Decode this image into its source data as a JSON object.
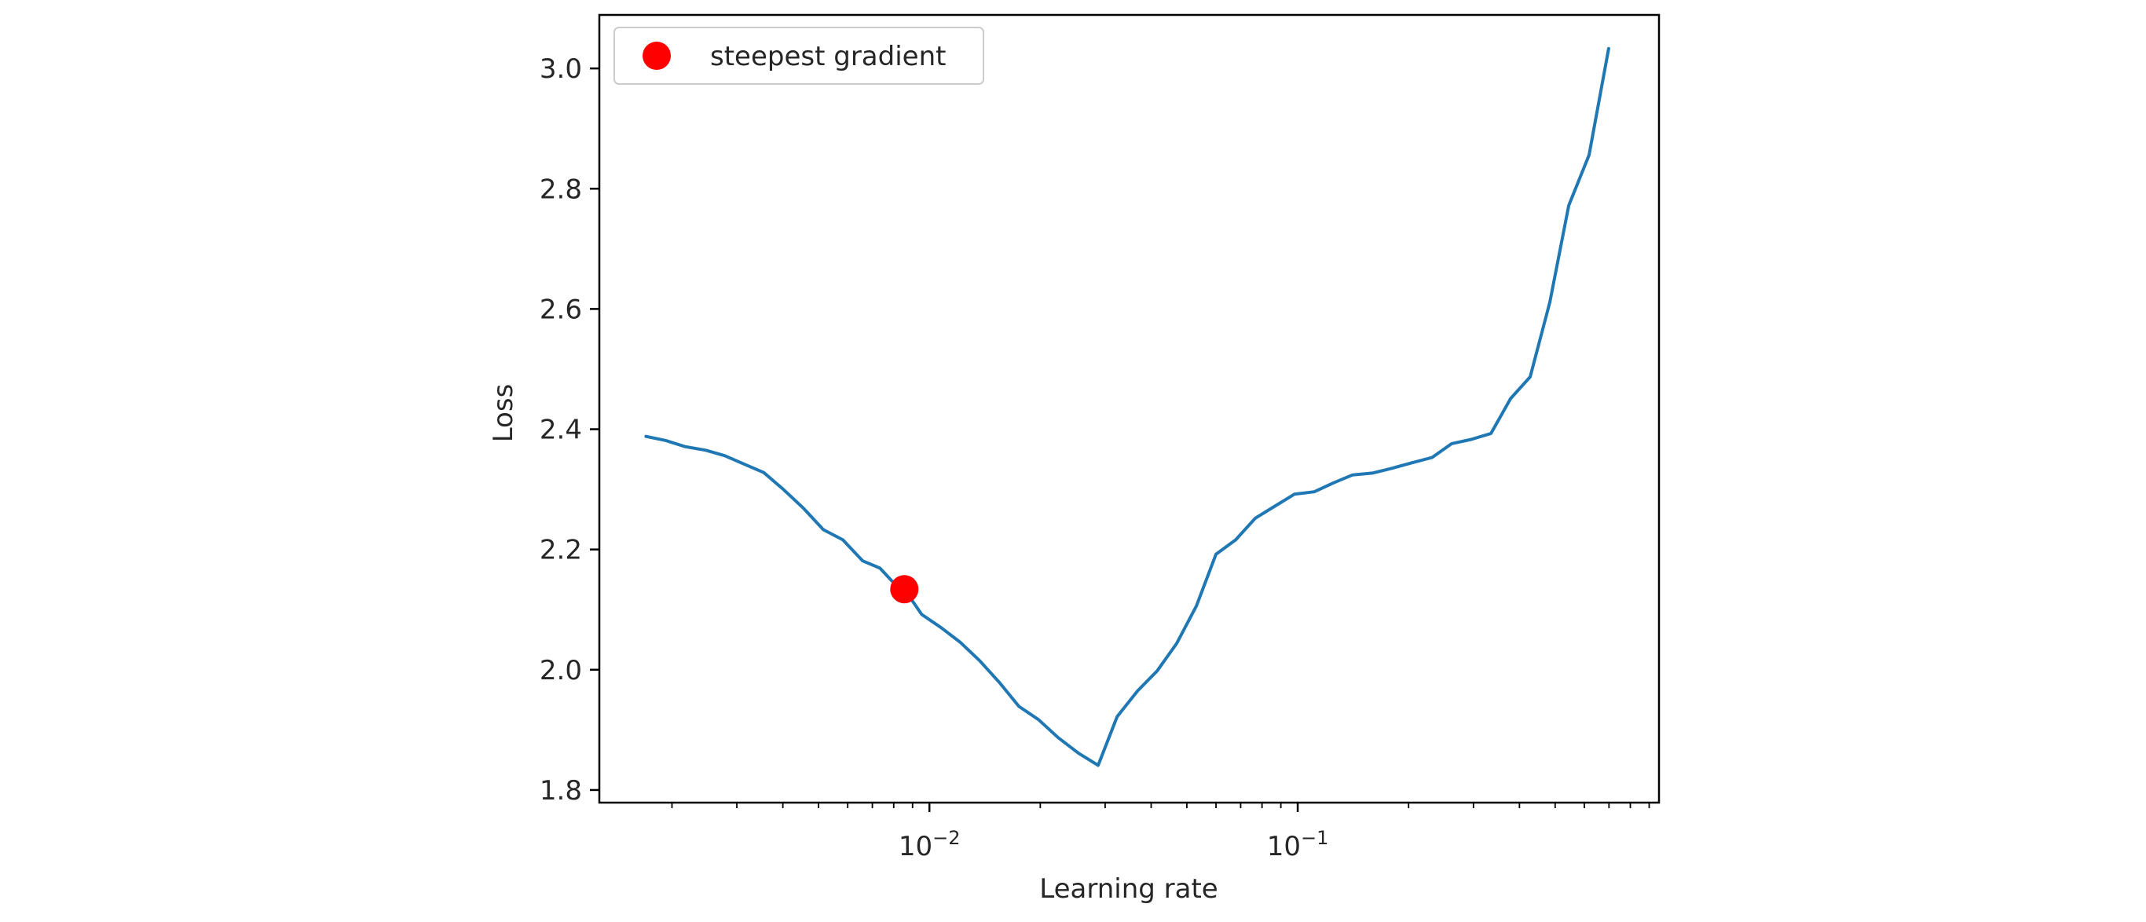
{
  "chart_data": {
    "type": "line",
    "title": "",
    "xlabel": "Learning rate",
    "ylabel": "Loss",
    "xscale": "log",
    "xlim": [
      0.00127,
      0.957
    ],
    "ylim": [
      1.779,
      3.089
    ],
    "grid": false,
    "legend_position": "upper left",
    "x_major_ticks": [
      {
        "value": 0.01,
        "label_base": "10",
        "label_exp": "−2"
      },
      {
        "value": 0.1,
        "label_base": "10",
        "label_exp": "−1"
      }
    ],
    "x_minor_ticks": [
      0.002,
      0.003,
      0.004,
      0.005,
      0.006,
      0.007,
      0.008,
      0.009,
      0.02,
      0.03,
      0.04,
      0.05,
      0.06,
      0.07,
      0.08,
      0.09,
      0.2,
      0.3,
      0.4,
      0.5,
      0.6,
      0.7,
      0.8,
      0.9
    ],
    "y_ticks": [
      {
        "value": 1.8,
        "label": "1.8"
      },
      {
        "value": 2.0,
        "label": "2.0"
      },
      {
        "value": 2.2,
        "label": "2.2"
      },
      {
        "value": 2.4,
        "label": "2.4"
      },
      {
        "value": 2.6,
        "label": "2.6"
      },
      {
        "value": 2.8,
        "label": "2.8"
      },
      {
        "value": 3.0,
        "label": "3.0"
      }
    ],
    "series": [
      {
        "name": "loss",
        "color": "#1f77b4",
        "x": [
          0.0017,
          0.00193,
          0.00217,
          0.00247,
          0.00278,
          0.00314,
          0.00355,
          0.00403,
          0.00456,
          0.00515,
          0.00582,
          0.00659,
          0.00734,
          0.0079,
          0.00855,
          0.00953,
          0.01076,
          0.01211,
          0.01369,
          0.01548,
          0.0175,
          0.01978,
          0.02237,
          0.02542,
          0.02872,
          0.03234,
          0.03676,
          0.04153,
          0.04695,
          0.05309,
          0.05999,
          0.06786,
          0.07671,
          0.0867,
          0.098,
          0.11088,
          0.12532,
          0.14096,
          0.15945,
          0.18017,
          0.20367,
          0.2317,
          0.26182,
          0.29591,
          0.33479,
          0.37841,
          0.42771,
          0.48345,
          0.54439,
          0.61814,
          0.69864
        ],
        "y": [
          2.388,
          2.381,
          2.371,
          2.365,
          2.356,
          2.342,
          2.328,
          2.299,
          2.268,
          2.233,
          2.216,
          2.181,
          2.169,
          2.148,
          2.134,
          2.092,
          2.07,
          2.046,
          2.015,
          1.979,
          1.939,
          1.917,
          1.887,
          1.861,
          1.841,
          1.922,
          1.965,
          1.998,
          2.044,
          2.106,
          2.192,
          2.216,
          2.252,
          2.272,
          2.292,
          2.296,
          2.311,
          2.324,
          2.327,
          2.335,
          2.344,
          2.353,
          2.376,
          2.383,
          2.393,
          2.451,
          2.487,
          2.611,
          2.772,
          2.856,
          3.033
        ]
      },
      {
        "name": "steepest gradient",
        "type": "scatter",
        "color": "#ff0000",
        "x": [
          0.00855
        ],
        "y": [
          2.134
        ]
      }
    ],
    "legend": [
      {
        "label": "steepest gradient",
        "marker": "circle",
        "color": "#ff0000"
      }
    ]
  },
  "colors": {
    "line": "#1f77b4",
    "marker": "#ff0000",
    "axes": "#000000",
    "text": "#262626",
    "legend_border": "#cccccc"
  }
}
